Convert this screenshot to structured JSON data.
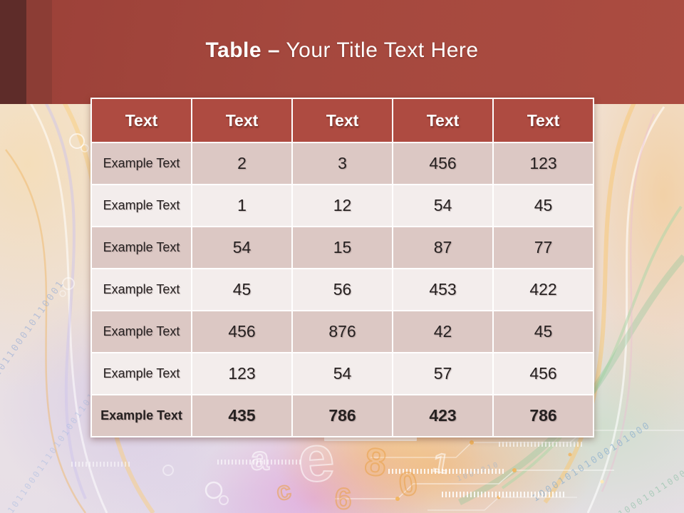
{
  "slide_title": {
    "bold": "Table",
    "separator": "–",
    "rest": "Your Title Text Here"
  },
  "table": {
    "headers": [
      "Text",
      "Text",
      "Text",
      "Text",
      "Text"
    ],
    "rows": [
      {
        "cells": [
          "Example Text",
          "2",
          "3",
          "456",
          "123"
        ],
        "bold": false
      },
      {
        "cells": [
          "Example Text",
          "1",
          "12",
          "54",
          "45"
        ],
        "bold": false
      },
      {
        "cells": [
          "Example Text",
          "54",
          "15",
          "87",
          "77"
        ],
        "bold": false
      },
      {
        "cells": [
          "Example Text",
          "45",
          "56",
          "453",
          "422"
        ],
        "bold": false
      },
      {
        "cells": [
          "Example Text",
          "456",
          "876",
          "42",
          "45"
        ],
        "bold": false
      },
      {
        "cells": [
          "Example Text",
          "123",
          "54",
          "57",
          "456"
        ],
        "bold": false
      },
      {
        "cells": [
          "Example Text",
          "435",
          "786",
          "423",
          "786"
        ],
        "bold": true
      }
    ]
  },
  "background": {
    "binary_strings": [
      "0110000101100010110001",
      "101100011101010011010",
      "100010101000101000",
      "0110001011000010",
      "1001010"
    ],
    "glyphs": [
      "e",
      "a",
      "8",
      "0",
      "6",
      "1",
      "c"
    ],
    "colors": {
      "banner_red": "#a5483e",
      "banner_dark_strip": "#5e2c29",
      "banner_mid_strip": "#8c3d35",
      "header_red": "#ae4b41",
      "row_odd": "#dcc8c4",
      "row_even": "#f3edec",
      "grid_border": "#ffffff"
    }
  }
}
